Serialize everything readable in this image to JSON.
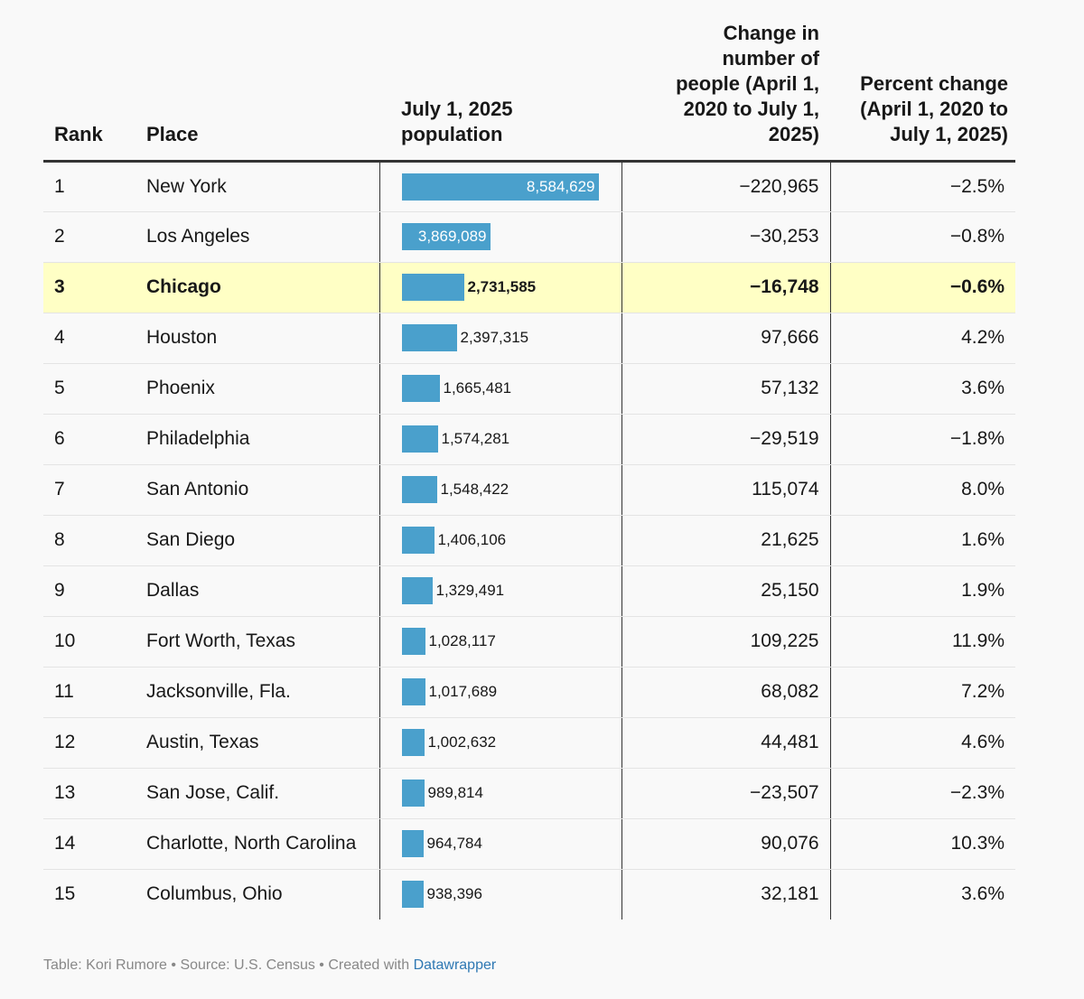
{
  "chart_data": {
    "type": "table",
    "columns": [
      "Rank",
      "Place",
      "July 1, 2025 population",
      "Change in number of people (April 1, 2020 to July 1, 2025)",
      "Percent change (April 1, 2020 to July 1, 2025)"
    ],
    "rows": [
      {
        "rank": "1",
        "place": "New York",
        "population": 8584629,
        "population_label": "8,584,629",
        "change": "−220,965",
        "pct": "−2.5%"
      },
      {
        "rank": "2",
        "place": "Los Angeles",
        "population": 3869089,
        "population_label": "3,869,089",
        "change": "−30,253",
        "pct": "−0.8%"
      },
      {
        "rank": "3",
        "place": "Chicago",
        "population": 2731585,
        "population_label": "2,731,585",
        "change": "−16,748",
        "pct": "−0.6%",
        "highlight": true
      },
      {
        "rank": "4",
        "place": "Houston",
        "population": 2397315,
        "population_label": "2,397,315",
        "change": "97,666",
        "pct": "4.2%"
      },
      {
        "rank": "5",
        "place": "Phoenix",
        "population": 1665481,
        "population_label": "1,665,481",
        "change": "57,132",
        "pct": "3.6%"
      },
      {
        "rank": "6",
        "place": "Philadelphia",
        "population": 1574281,
        "population_label": "1,574,281",
        "change": "−29,519",
        "pct": "−1.8%"
      },
      {
        "rank": "7",
        "place": "San Antonio",
        "population": 1548422,
        "population_label": "1,548,422",
        "change": "115,074",
        "pct": "8.0%"
      },
      {
        "rank": "8",
        "place": "San Diego",
        "population": 1406106,
        "population_label": "1,406,106",
        "change": "21,625",
        "pct": "1.6%"
      },
      {
        "rank": "9",
        "place": "Dallas",
        "population": 1329491,
        "population_label": "1,329,491",
        "change": "25,150",
        "pct": "1.9%"
      },
      {
        "rank": "10",
        "place": "Fort Worth, Texas",
        "population": 1028117,
        "population_label": "1,028,117",
        "change": "109,225",
        "pct": "11.9%"
      },
      {
        "rank": "11",
        "place": "Jacksonville, Fla.",
        "population": 1017689,
        "population_label": "1,017,689",
        "change": "68,082",
        "pct": "7.2%"
      },
      {
        "rank": "12",
        "place": "Austin, Texas",
        "population": 1002632,
        "population_label": "1,002,632",
        "change": "44,481",
        "pct": "4.6%"
      },
      {
        "rank": "13",
        "place": "San Jose, Calif.",
        "population": 989814,
        "population_label": "989,814",
        "change": "−23,507",
        "pct": "−2.3%"
      },
      {
        "rank": "14",
        "place": "Charlotte, North Carolina",
        "population": 964784,
        "population_label": "964,784",
        "change": "90,076",
        "pct": "10.3%"
      },
      {
        "rank": "15",
        "place": "Columbus, Ohio",
        "population": 938396,
        "population_label": "938,396",
        "change": "32,181",
        "pct": "3.6%"
      }
    ],
    "bar_color": "#4aa0cc",
    "highlight_color": "#ffffc5"
  },
  "header": {
    "rank": "Rank",
    "place": "Place",
    "population": "July 1, 2025 population",
    "change": "Change in number of people (April 1, 2020 to July 1, 2025)",
    "pct": "Percent change (April 1, 2020 to July 1, 2025)"
  },
  "footer": {
    "prefix": "Table: Kori Rumore • Source: U.S. Census • Created with ",
    "link": "Datawrapper"
  }
}
